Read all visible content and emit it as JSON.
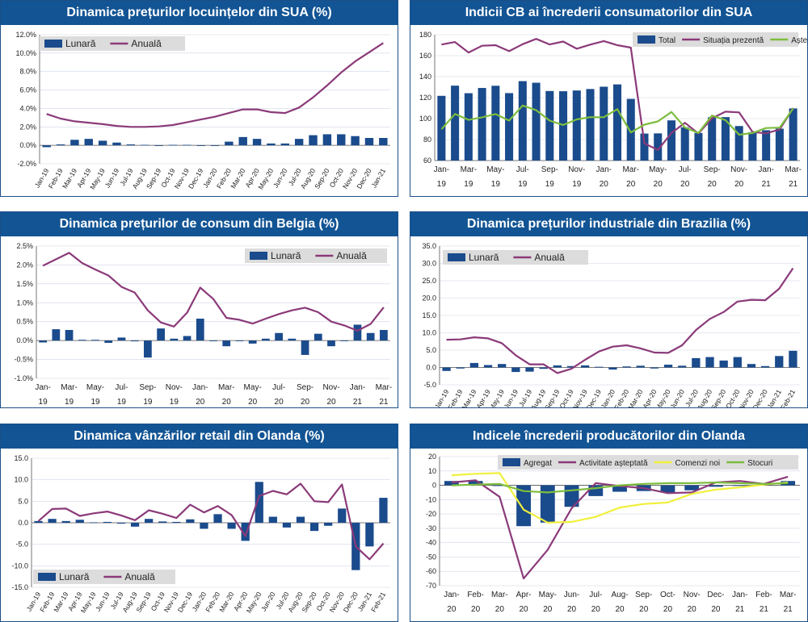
{
  "colors": {
    "bar": "#1a4b8c",
    "purple": "#8b3a79",
    "green": "#7dbd3e",
    "yellow": "#f0f03c",
    "grid": "#cfd6e6",
    "axis": "#555555"
  },
  "chart_data": [
    {
      "id": "c1",
      "type": "bar+line",
      "title": "Dinamica prețurilor locuințelor din SUA (%)",
      "ylim": [
        -2,
        12
      ],
      "yticks": [
        -2,
        0,
        2,
        4,
        6,
        8,
        10,
        12
      ],
      "ytick_labels": [
        "-2.0%",
        "0.0%",
        "2.0%",
        "4.0%",
        "6.0%",
        "8.0%",
        "10.0%",
        "12.0%"
      ],
      "legend_position": "top-left",
      "x": [
        "Jan-19",
        "Feb-19",
        "Mar-19",
        "Apr-19",
        "May-19",
        "Jun-19",
        "Jul-19",
        "Aug-19",
        "Sep-19",
        "Oct-19",
        "Nov-19",
        "Dec-19",
        "Jan-20",
        "Feb-20",
        "Mar-20",
        "Apr-20",
        "May-20",
        "Jun-20",
        "Jul-20",
        "Aug-20",
        "Sep-20",
        "Oct-20",
        "Nov-20",
        "Dec-20",
        "Jan-21"
      ],
      "series": [
        {
          "name": "Lunară",
          "kind": "bar",
          "values": [
            -0.2,
            0.1,
            0.6,
            0.7,
            0.5,
            0.3,
            0.1,
            0.05,
            0.0,
            0.05,
            0.05,
            0.0,
            0.0,
            0.4,
            0.9,
            0.7,
            0.2,
            0.2,
            0.7,
            1.1,
            1.2,
            1.2,
            1.0,
            0.8,
            0.8
          ]
        },
        {
          "name": "Anuală",
          "kind": "line",
          "values": [
            3.4,
            2.9,
            2.6,
            2.45,
            2.3,
            2.1,
            2.0,
            2.0,
            2.05,
            2.2,
            2.5,
            2.8,
            3.1,
            3.5,
            3.9,
            3.9,
            3.6,
            3.5,
            4.1,
            5.2,
            6.5,
            7.9,
            9.1,
            10.1,
            11.1
          ]
        }
      ]
    },
    {
      "id": "c2",
      "type": "bar+line",
      "title": "Indicii CB ai încrederii consumatorilor din SUA",
      "ylim": [
        60,
        180
      ],
      "yticks": [
        60,
        80,
        100,
        120,
        140,
        160,
        180
      ],
      "ytick_labels": [
        "60",
        "80",
        "100",
        "120",
        "140",
        "160",
        "180"
      ],
      "legend_position": "top-right",
      "x_labels": [
        [
          "Jan-",
          "19"
        ],
        [
          "Mar-",
          "19"
        ],
        [
          "May-",
          "19"
        ],
        [
          "Jul-",
          "19"
        ],
        [
          "Sep-",
          "19"
        ],
        [
          "Nov-",
          "19"
        ],
        [
          "Jan-",
          "20"
        ],
        [
          "Mar-",
          "20"
        ],
        [
          "May-",
          "20"
        ],
        [
          "Jul-",
          "20"
        ],
        [
          "Sep-",
          "20"
        ],
        [
          "Nov-",
          "20"
        ],
        [
          "Jan-",
          "21"
        ],
        [
          "Mar-",
          "21"
        ]
      ],
      "series": [
        {
          "name": "Total",
          "kind": "bar",
          "values": [
            121.7,
            131.4,
            124.2,
            129.2,
            131.3,
            124.3,
            135.7,
            134.2,
            126.3,
            126.1,
            126.8,
            128.2,
            130.4,
            132.6,
            118.8,
            85.7,
            85.9,
            98.3,
            91.7,
            86.3,
            101.3,
            101.4,
            92.9,
            87.1,
            88.9,
            90.4,
            109.7
          ]
        },
        {
          "name": "Situația prezentă",
          "kind": "line",
          "color": "purple",
          "values": [
            170.6,
            173.0,
            163.0,
            169.5,
            170.0,
            164.3,
            170.9,
            176.0,
            170.7,
            173.5,
            166.6,
            170.5,
            173.9,
            170.0,
            167.7,
            76.4,
            70.1,
            86.2,
            96.0,
            85.8,
            100.3,
            106.6,
            105.9,
            87.2,
            85.9,
            89.6,
            110.0
          ]
        },
        {
          "name": "Așteptări",
          "kind": "line",
          "color": "green",
          "values": [
            89.9,
            104.4,
            98.8,
            101.2,
            104.3,
            98.1,
            112.5,
            108.0,
            98.1,
            93.9,
            99.2,
            101.4,
            101.3,
            109.0,
            86.8,
            94.2,
            97.3,
            106.3,
            91.5,
            86.3,
            102.9,
            98.5,
            84.6,
            86.2,
            91.0,
            91.4,
            109.6
          ]
        }
      ]
    },
    {
      "id": "c3",
      "type": "bar+line",
      "title": "Dinamica prețurilor de consum din Belgia (%)",
      "ylim": [
        -1,
        2.5
      ],
      "yticks": [
        -1,
        -0.5,
        0,
        0.5,
        1,
        1.5,
        2,
        2.5
      ],
      "ytick_labels": [
        "-1.0%",
        "-0.5%",
        "0.0%",
        "0.5%",
        "1.0%",
        "1.5%",
        "2.0%",
        "2.5%"
      ],
      "legend_position": "top-right",
      "x_labels": [
        [
          "Jan-",
          "19"
        ],
        [
          "Mar-",
          "19"
        ],
        [
          "May-",
          "19"
        ],
        [
          "Jul-",
          "19"
        ],
        [
          "Sep-",
          "19"
        ],
        [
          "Nov-",
          "19"
        ],
        [
          "Jan-",
          "20"
        ],
        [
          "Mar-",
          "20"
        ],
        [
          "May-",
          "20"
        ],
        [
          "Jul-",
          "20"
        ],
        [
          "Sep-",
          "20"
        ],
        [
          "Nov-",
          "20"
        ],
        [
          "Jan-",
          "21"
        ],
        [
          "Mar-",
          "21"
        ]
      ],
      "series": [
        {
          "name": "Lunară",
          "kind": "bar",
          "values": [
            -0.05,
            0.3,
            0.28,
            0.02,
            0.02,
            -0.06,
            0.08,
            -0.02,
            -0.45,
            0.32,
            0.05,
            0.12,
            0.58,
            -0.01,
            -0.15,
            0.0,
            -0.08,
            0.05,
            0.2,
            0.05,
            -0.38,
            0.18,
            -0.15,
            0.0,
            0.42,
            0.2,
            0.28
          ]
        },
        {
          "name": "Anuală",
          "kind": "line",
          "values": [
            1.98,
            2.15,
            2.32,
            2.05,
            1.88,
            1.72,
            1.42,
            1.27,
            0.8,
            0.48,
            0.37,
            0.74,
            1.4,
            1.1,
            0.6,
            0.55,
            0.45,
            0.58,
            0.7,
            0.8,
            0.87,
            0.75,
            0.5,
            0.4,
            0.26,
            0.44,
            0.88
          ]
        }
      ]
    },
    {
      "id": "c4",
      "type": "bar+line",
      "title": "Dinamica prețurilor industriale din Brazilia (%)",
      "ylim": [
        -5,
        35
      ],
      "yticks": [
        -5,
        0,
        5,
        10,
        15,
        20,
        25,
        30,
        35
      ],
      "ytick_labels": [
        "-5.0",
        "0.0",
        "5.0",
        "10.0",
        "15.0",
        "20.0",
        "25.0",
        "30.0",
        "35.0"
      ],
      "legend_position": "top-left",
      "x": [
        "Jan-19",
        "Feb-19",
        "Mar-19",
        "Apr-19",
        "May-19",
        "Jun-19",
        "Jul-19",
        "Aug-19",
        "Sep-19",
        "Oct-19",
        "Nov-19",
        "Dec-19",
        "Jan-20",
        "Feb-20",
        "Mar-20",
        "Apr-20",
        "May-20",
        "Jun-20",
        "Jul-20",
        "Aug-20",
        "Sep-20",
        "Oct-20",
        "Nov-20",
        "Dec-20",
        "Jan-21",
        "Feb-21"
      ],
      "series": [
        {
          "name": "Lunară",
          "kind": "bar",
          "values": [
            -1.0,
            -0.3,
            1.3,
            0.7,
            1.0,
            -1.3,
            -1.2,
            -0.4,
            0.6,
            0.4,
            0.6,
            0.2,
            -0.6,
            0.3,
            0.5,
            -0.3,
            0.8,
            0.5,
            2.7,
            3.0,
            2.0,
            3.0,
            1.0,
            0.4,
            3.3,
            4.8
          ]
        },
        {
          "name": "Anuală",
          "kind": "line",
          "values": [
            8.0,
            8.1,
            8.7,
            8.4,
            7.0,
            3.5,
            0.9,
            0.9,
            -1.6,
            -0.4,
            2.2,
            4.6,
            6.0,
            6.4,
            5.5,
            4.3,
            4.2,
            6.4,
            10.8,
            14.0,
            16.0,
            19.0,
            19.5,
            19.4,
            22.7,
            28.6
          ]
        }
      ]
    },
    {
      "id": "c5",
      "type": "bar+line",
      "title": "Dinamica vânzărilor retail din Olanda (%)",
      "ylim": [
        -15,
        15
      ],
      "yticks": [
        -15,
        -10,
        -5,
        0,
        5,
        10,
        15
      ],
      "ytick_labels": [
        "-15.0",
        "-10.0",
        "-5.0",
        "0.0",
        "5.0",
        "10.0",
        "15.0"
      ],
      "legend_position": "bottom-left",
      "x": [
        "Jan-19",
        "Feb-19",
        "Mar-19",
        "Apr-19",
        "May-19",
        "Jun-19",
        "Jul-19",
        "Aug-19",
        "Sep-19",
        "Oct-19",
        "Nov-19",
        "Dec-19",
        "Jan-20",
        "Feb-20",
        "Mar-20",
        "Apr-20",
        "May-20",
        "Jun-20",
        "Jul-20",
        "Aug-20",
        "Sep-20",
        "Oct-20",
        "Nov-20",
        "Dec-20",
        "Jan-21",
        "Feb-21"
      ],
      "series": [
        {
          "name": "Lunară",
          "kind": "bar",
          "values": [
            0.4,
            0.9,
            0.4,
            0.7,
            0.1,
            0.2,
            -0.2,
            -0.9,
            0.9,
            0.3,
            0.2,
            0.8,
            -1.4,
            2.0,
            -1.4,
            -4.2,
            9.5,
            1.4,
            -1.1,
            1.4,
            -1.9,
            -0.7,
            3.3,
            -11.0,
            -5.5,
            5.8
          ]
        },
        {
          "name": "Anuală",
          "kind": "line",
          "values": [
            0.4,
            3.2,
            3.3,
            1.6,
            2.2,
            2.6,
            1.7,
            0.6,
            2.9,
            2.1,
            1.1,
            4.2,
            2.4,
            3.9,
            1.8,
            -3.1,
            6.2,
            7.4,
            6.6,
            9.1,
            5.0,
            4.8,
            8.9,
            -5.5,
            -8.5,
            -4.8
          ]
        }
      ]
    },
    {
      "id": "c6",
      "type": "bar+line",
      "title": "Indicele încrederii producătorilor din Olanda",
      "ylim": [
        -70,
        20
      ],
      "yticks": [
        -70,
        -60,
        -50,
        -40,
        -30,
        -20,
        -10,
        0,
        10,
        20
      ],
      "ytick_labels": [
        "-70",
        "-60",
        "-50",
        "-40",
        "-30",
        "-20",
        "-10",
        "0",
        "10",
        "20"
      ],
      "legend_position": "top",
      "x_labels": [
        [
          "Jan-",
          "20"
        ],
        [
          "Feb-",
          "20"
        ],
        [
          "Mar-",
          "20"
        ],
        [
          "Apr-",
          "20"
        ],
        [
          "May-",
          "20"
        ],
        [
          "Jun-",
          "20"
        ],
        [
          "Jul-",
          "20"
        ],
        [
          "Aug-",
          "20"
        ],
        [
          "Sep-",
          "20"
        ],
        [
          "Oct-",
          "20"
        ],
        [
          "Nov-",
          "20"
        ],
        [
          "Dec-",
          "20"
        ],
        [
          "Jan-",
          "21"
        ],
        [
          "Feb-",
          "21"
        ],
        [
          "Mar-",
          "21"
        ]
      ],
      "series": [
        {
          "name": "Agregat",
          "kind": "bar",
          "values": [
            3.0,
            3.0,
            -0.5,
            -28.5,
            -26.0,
            -15.0,
            -7.5,
            -4.5,
            -4.0,
            -5.0,
            -3.5,
            -1.0,
            0.0,
            1.0,
            3.0
          ]
        },
        {
          "name": "Activitate așteptată",
          "kind": "line",
          "color": "purple",
          "values": [
            2.0,
            3.5,
            -8.0,
            -65.0,
            -45.0,
            -16.0,
            1.5,
            -0.5,
            -2.0,
            -5.5,
            -5.0,
            2.0,
            3.0,
            1.0,
            6.0
          ]
        },
        {
          "name": "Comenzi noi",
          "kind": "line",
          "color": "yellow",
          "values": [
            7.0,
            8.0,
            8.5,
            -17.0,
            -26.0,
            -25.5,
            -22.0,
            -15.5,
            -13.0,
            -12.0,
            -6.0,
            -3.0,
            -1.5,
            0.5,
            2.0
          ]
        },
        {
          "name": "Stocuri",
          "kind": "line",
          "color": "green",
          "values": [
            0.0,
            0.5,
            1.0,
            -4.0,
            -5.0,
            -3.5,
            -2.0,
            0.0,
            1.0,
            1.5,
            1.5,
            2.0,
            1.5,
            1.0,
            1.5
          ]
        }
      ]
    }
  ]
}
